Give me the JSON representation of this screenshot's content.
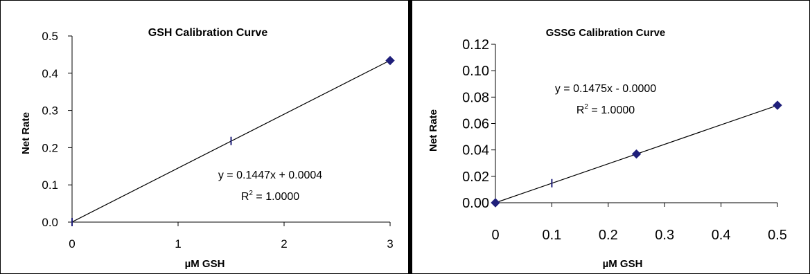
{
  "chart_data": [
    {
      "type": "scatter",
      "title": "GSH Calibration Curve",
      "xlabel": "µM GSH",
      "ylabel": "Net Rate",
      "xlim": [
        0,
        3
      ],
      "ylim": [
        0,
        0.5
      ],
      "xticks": [
        "0",
        "1",
        "2",
        "3"
      ],
      "yticks": [
        "0.0",
        "0.1",
        "0.2",
        "0.3",
        "0.4",
        "0.5"
      ],
      "series": [
        {
          "x": [
            0,
            1.5,
            3
          ],
          "y": [
            0,
            0.218,
            0.434
          ],
          "markers": [
            "dash",
            "dash",
            "diamond"
          ],
          "color": "#1f1f7a"
        }
      ],
      "trendline": {
        "slope": 0.1447,
        "intercept": 0.0004
      },
      "equation": "y = 0.1447x + 0.0004",
      "r2_prefix": "R",
      "r2_exp": "2",
      "r2_value": " = 1.0000",
      "grid": false
    },
    {
      "type": "scatter",
      "title": "GSSG Calibration Curve",
      "xlabel": "µM GSH",
      "ylabel": "Net Rate",
      "xlim": [
        0,
        0.5
      ],
      "ylim": [
        0,
        0.12
      ],
      "xticks": [
        "0",
        "0.1",
        "0.2",
        "0.3",
        "0.4",
        "0.5"
      ],
      "yticks": [
        "0.00",
        "0.02",
        "0.04",
        "0.06",
        "0.08",
        "0.10",
        "0.12"
      ],
      "series": [
        {
          "x": [
            0,
            0.1,
            0.25,
            0.5
          ],
          "y": [
            0,
            0.0148,
            0.0369,
            0.0738
          ],
          "markers": [
            "diamond",
            "dash",
            "diamond",
            "diamond"
          ],
          "color": "#1f1f7a"
        }
      ],
      "trendline": {
        "slope": 0.1475,
        "intercept": 0
      },
      "equation": "y = 0.1475x - 0.0000",
      "r2_prefix": "R",
      "r2_exp": "2",
      "r2_value": " = 1.0000",
      "grid": false
    }
  ]
}
